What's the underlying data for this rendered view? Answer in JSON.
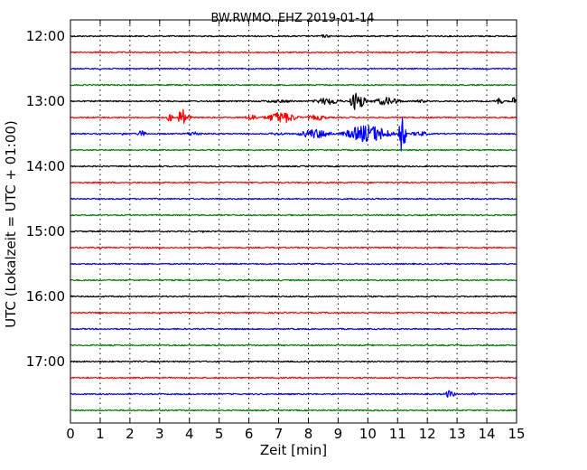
{
  "chart_data": {
    "type": "line",
    "title": "BW.RWMO..EHZ 2019-01-14",
    "xlabel": "Zeit  [min]",
    "ylabel": "UTC (Lokalzeit = UTC + 01:00)",
    "xlim": [
      0,
      15
    ],
    "x_ticks": [
      "0",
      "1",
      "2",
      "3",
      "4",
      "5",
      "6",
      "7",
      "8",
      "9",
      "10",
      "11",
      "12",
      "13",
      "14",
      "15"
    ],
    "y_ticks": [
      "12:00",
      "13:00",
      "14:00",
      "15:00",
      "16:00",
      "17:00"
    ],
    "x_grid": "dotted",
    "colors": [
      "#000000",
      "#ff0000",
      "#0000ff",
      "#008000"
    ],
    "traces": [
      {
        "start": "12:00",
        "color": "#000000",
        "events": [
          {
            "t0": 8.2,
            "t1": 8.9,
            "amp": 0.12
          }
        ]
      },
      {
        "start": "12:15",
        "color": "#ff0000",
        "events": [
          {
            "t0": 3.6,
            "t1": 3.7,
            "amp": 0.06
          }
        ]
      },
      {
        "start": "12:30",
        "color": "#0000ff",
        "events": []
      },
      {
        "start": "12:45",
        "color": "#008000",
        "events": []
      },
      {
        "start": "13:00",
        "color": "#000000",
        "events": [
          {
            "t0": 6.0,
            "t1": 8.0,
            "amp": 0.12
          },
          {
            "t0": 8.0,
            "t1": 9.3,
            "amp": 0.28
          },
          {
            "t0": 9.3,
            "t1": 10.0,
            "amp": 0.75
          },
          {
            "t0": 10.0,
            "t1": 11.3,
            "amp": 0.32
          },
          {
            "t0": 11.3,
            "t1": 12.2,
            "amp": 0.12
          },
          {
            "t0": 14.2,
            "t1": 14.6,
            "amp": 0.3
          },
          {
            "t0": 14.8,
            "t1": 15.0,
            "amp": 0.35
          }
        ]
      },
      {
        "start": "13:15",
        "color": "#ff0000",
        "events": [
          {
            "t0": 3.2,
            "t1": 3.5,
            "amp": 0.35
          },
          {
            "t0": 3.6,
            "t1": 3.9,
            "amp": 0.95
          },
          {
            "t0": 3.9,
            "t1": 4.1,
            "amp": 0.2
          },
          {
            "t0": 5.8,
            "t1": 6.4,
            "amp": 0.25
          },
          {
            "t0": 6.4,
            "t1": 7.8,
            "amp": 0.45
          },
          {
            "t0": 7.8,
            "t1": 8.8,
            "amp": 0.22
          },
          {
            "t0": 8.8,
            "t1": 10.0,
            "amp": 0.06
          }
        ]
      },
      {
        "start": "13:30",
        "color": "#0000ff",
        "events": [
          {
            "t0": 1.5,
            "t1": 2.0,
            "amp": 0.12
          },
          {
            "t0": 2.2,
            "t1": 2.6,
            "amp": 0.28
          },
          {
            "t0": 3.7,
            "t1": 4.6,
            "amp": 0.18
          },
          {
            "t0": 6.5,
            "t1": 7.5,
            "amp": 0.12
          },
          {
            "t0": 7.5,
            "t1": 9.0,
            "amp": 0.38
          },
          {
            "t0": 9.0,
            "t1": 11.0,
            "amp": 0.7
          },
          {
            "t0": 11.0,
            "t1": 11.3,
            "amp": 1.7
          },
          {
            "t0": 11.3,
            "t1": 12.2,
            "amp": 0.2
          }
        ]
      },
      {
        "start": "13:45",
        "color": "#008000",
        "events": []
      },
      {
        "start": "14:00",
        "color": "#000000",
        "events": []
      },
      {
        "start": "14:15",
        "color": "#ff0000",
        "events": []
      },
      {
        "start": "14:30",
        "color": "#0000ff",
        "events": []
      },
      {
        "start": "14:45",
        "color": "#008000",
        "events": [
          {
            "t0": 7.3,
            "t1": 7.4,
            "amp": 0.12
          }
        ]
      },
      {
        "start": "15:00",
        "color": "#000000",
        "events": [
          {
            "t0": 4.4,
            "t1": 4.5,
            "amp": 0.1
          }
        ]
      },
      {
        "start": "15:15",
        "color": "#ff0000",
        "events": []
      },
      {
        "start": "15:30",
        "color": "#0000ff",
        "events": []
      },
      {
        "start": "15:45",
        "color": "#008000",
        "events": []
      },
      {
        "start": "16:00",
        "color": "#000000",
        "events": []
      },
      {
        "start": "16:15",
        "color": "#ff0000",
        "events": []
      },
      {
        "start": "16:30",
        "color": "#0000ff",
        "events": []
      },
      {
        "start": "16:45",
        "color": "#008000",
        "events": []
      },
      {
        "start": "17:00",
        "color": "#000000",
        "events": [
          {
            "t0": 9.0,
            "t1": 9.1,
            "amp": 0.08
          }
        ]
      },
      {
        "start": "17:15",
        "color": "#ff0000",
        "events": []
      },
      {
        "start": "17:30",
        "color": "#0000ff",
        "events": [
          {
            "t0": 12.5,
            "t1": 13.0,
            "amp": 0.3
          },
          {
            "t0": 13.5,
            "t1": 13.6,
            "amp": 0.2
          }
        ]
      },
      {
        "start": "17:45",
        "color": "#008000",
        "events": []
      }
    ]
  }
}
